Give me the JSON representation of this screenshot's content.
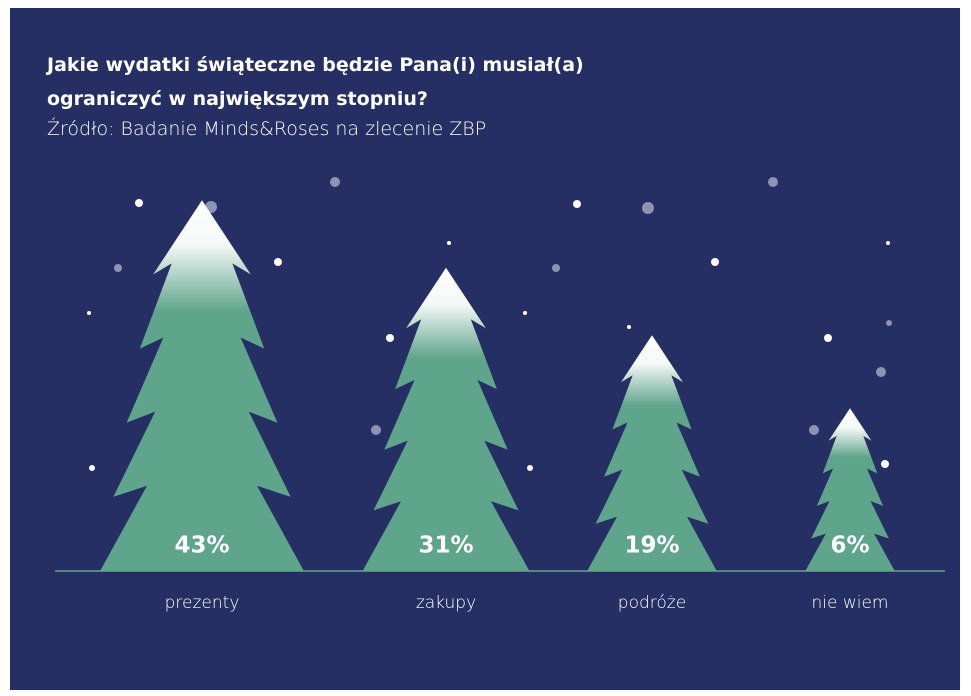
{
  "chart_data": {
    "type": "bar",
    "title": "Jakie wydatki świąteczne będzie Pana(i) musiał(a) ograniczyć w największym stopniu?",
    "subtitle": "Źródło: Badanie Minds&Roses na zlecenie ZBP",
    "categories": [
      "prezenty",
      "zakupy",
      "podróże",
      "nie wiem"
    ],
    "values": [
      43,
      31,
      19,
      6
    ],
    "value_labels": [
      "43%",
      "31%",
      "19%",
      "6%"
    ],
    "color": "#5fa58c"
  }
}
